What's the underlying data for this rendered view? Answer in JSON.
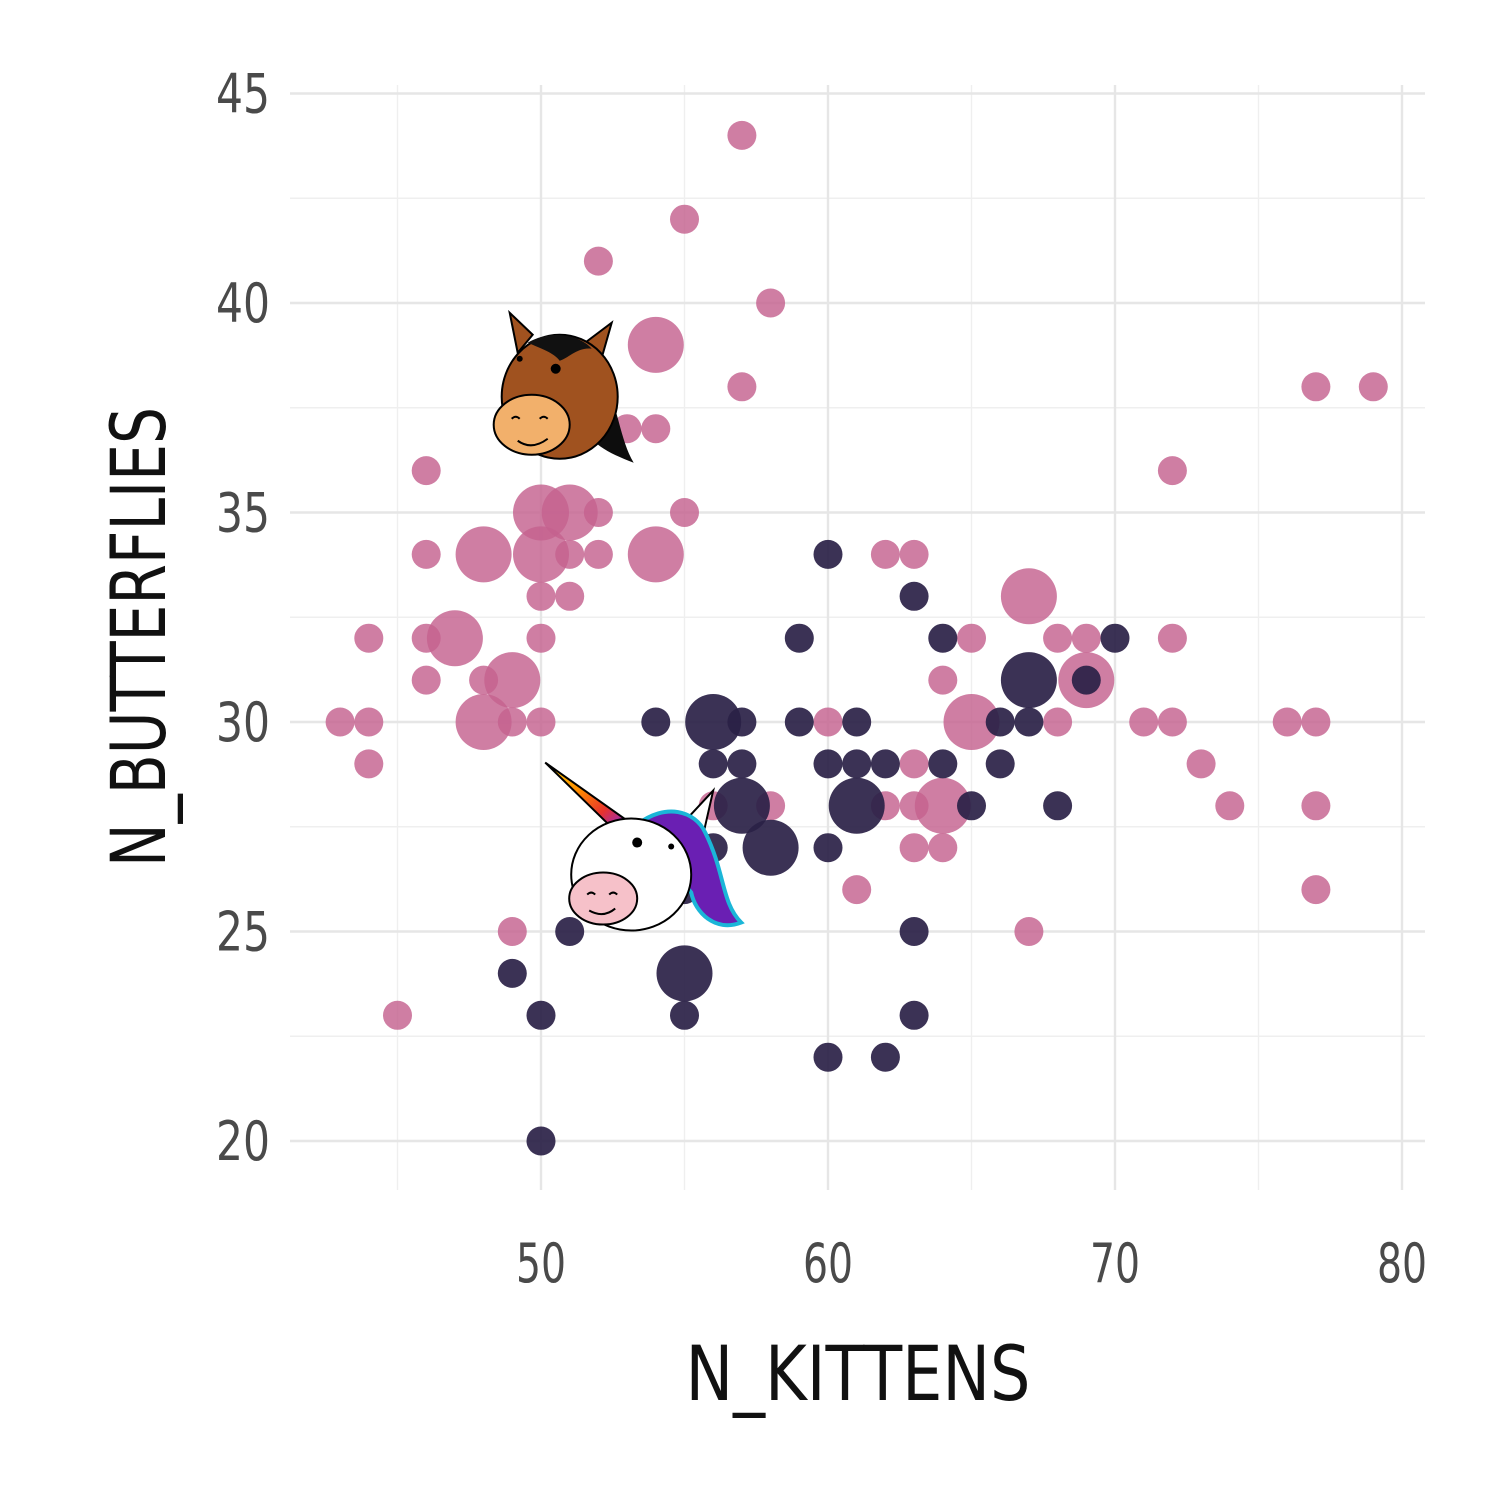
{
  "chart_data": {
    "type": "scatter",
    "xlabel": "N_KITTENS",
    "ylabel": "N_BUTTERFLIES",
    "xlim": [
      42.5,
      80.8
    ],
    "ylim": [
      19.2,
      45.3
    ],
    "x_ticks": [
      50,
      60,
      70,
      80
    ],
    "y_ticks": [
      20,
      25,
      30,
      35,
      40,
      45
    ],
    "grid": true,
    "legend": "none",
    "series": [
      {
        "color": "#c4628f",
        "icon": "horse-icon",
        "points": [
          {
            "x": 57,
            "y": 44,
            "size": 1
          },
          {
            "x": 55,
            "y": 42,
            "size": 1
          },
          {
            "x": 52,
            "y": 41,
            "size": 1
          },
          {
            "x": 58,
            "y": 40,
            "size": 1
          },
          {
            "x": 54,
            "y": 39,
            "size": 2
          },
          {
            "x": 51,
            "y": 38,
            "size": 2
          },
          {
            "x": 57,
            "y": 38,
            "size": 1
          },
          {
            "x": 51,
            "y": 37,
            "size": 1
          },
          {
            "x": 53,
            "y": 37,
            "size": 1
          },
          {
            "x": 54,
            "y": 37,
            "size": 1
          },
          {
            "x": 46,
            "y": 36,
            "size": 1
          },
          {
            "x": 50,
            "y": 35,
            "size": 2
          },
          {
            "x": 51,
            "y": 35,
            "size": 2
          },
          {
            "x": 52,
            "y": 35,
            "size": 1
          },
          {
            "x": 55,
            "y": 35,
            "size": 1
          },
          {
            "x": 46,
            "y": 34,
            "size": 1
          },
          {
            "x": 48,
            "y": 34,
            "size": 2
          },
          {
            "x": 50,
            "y": 34,
            "size": 2
          },
          {
            "x": 51,
            "y": 34,
            "size": 1
          },
          {
            "x": 52,
            "y": 34,
            "size": 1
          },
          {
            "x": 54,
            "y": 34,
            "size": 2
          },
          {
            "x": 50,
            "y": 33,
            "size": 1
          },
          {
            "x": 51,
            "y": 33,
            "size": 1
          },
          {
            "x": 44,
            "y": 32,
            "size": 1
          },
          {
            "x": 46,
            "y": 32,
            "size": 1
          },
          {
            "x": 47,
            "y": 32,
            "size": 2
          },
          {
            "x": 50,
            "y": 32,
            "size": 1
          },
          {
            "x": 46,
            "y": 31,
            "size": 1
          },
          {
            "x": 48,
            "y": 31,
            "size": 1
          },
          {
            "x": 49,
            "y": 31,
            "size": 2
          },
          {
            "x": 43,
            "y": 30,
            "size": 1
          },
          {
            "x": 44,
            "y": 30,
            "size": 1
          },
          {
            "x": 48,
            "y": 30,
            "size": 2
          },
          {
            "x": 49,
            "y": 30,
            "size": 1
          },
          {
            "x": 50,
            "y": 30,
            "size": 1
          },
          {
            "x": 44,
            "y": 29,
            "size": 1
          },
          {
            "x": 49,
            "y": 25,
            "size": 1
          },
          {
            "x": 45,
            "y": 23,
            "size": 1
          },
          {
            "x": 62,
            "y": 34,
            "size": 1
          },
          {
            "x": 63,
            "y": 34,
            "size": 1
          },
          {
            "x": 67,
            "y": 33,
            "size": 2
          },
          {
            "x": 65,
            "y": 32,
            "size": 1
          },
          {
            "x": 68,
            "y": 32,
            "size": 1
          },
          {
            "x": 69,
            "y": 32,
            "size": 1
          },
          {
            "x": 72,
            "y": 32,
            "size": 1
          },
          {
            "x": 64,
            "y": 31,
            "size": 1
          },
          {
            "x": 69,
            "y": 31,
            "size": 2
          },
          {
            "x": 60,
            "y": 30,
            "size": 1
          },
          {
            "x": 65,
            "y": 30,
            "size": 2
          },
          {
            "x": 68,
            "y": 30,
            "size": 1
          },
          {
            "x": 71,
            "y": 30,
            "size": 1
          },
          {
            "x": 72,
            "y": 30,
            "size": 1
          },
          {
            "x": 76,
            "y": 30,
            "size": 1
          },
          {
            "x": 77,
            "y": 30,
            "size": 1
          },
          {
            "x": 63,
            "y": 29,
            "size": 1
          },
          {
            "x": 73,
            "y": 29,
            "size": 1
          },
          {
            "x": 56,
            "y": 28,
            "size": 1
          },
          {
            "x": 58,
            "y": 28,
            "size": 1
          },
          {
            "x": 62,
            "y": 28,
            "size": 1
          },
          {
            "x": 63,
            "y": 28,
            "size": 1
          },
          {
            "x": 64,
            "y": 28,
            "size": 2
          },
          {
            "x": 74,
            "y": 28,
            "size": 1
          },
          {
            "x": 77,
            "y": 28,
            "size": 1
          },
          {
            "x": 63,
            "y": 27,
            "size": 1
          },
          {
            "x": 64,
            "y": 27,
            "size": 1
          },
          {
            "x": 61,
            "y": 26,
            "size": 1
          },
          {
            "x": 77,
            "y": 26,
            "size": 1
          },
          {
            "x": 67,
            "y": 25,
            "size": 1
          },
          {
            "x": 72,
            "y": 36,
            "size": 1
          },
          {
            "x": 77,
            "y": 38,
            "size": 1
          },
          {
            "x": 79,
            "y": 38,
            "size": 1
          }
        ]
      },
      {
        "color": "#2a2146",
        "icon": "unicorn-icon",
        "points": [
          {
            "x": 60,
            "y": 34,
            "size": 1
          },
          {
            "x": 63,
            "y": 33,
            "size": 1
          },
          {
            "x": 59,
            "y": 32,
            "size": 1
          },
          {
            "x": 64,
            "y": 32,
            "size": 1
          },
          {
            "x": 70,
            "y": 32,
            "size": 1
          },
          {
            "x": 67,
            "y": 31,
            "size": 2
          },
          {
            "x": 69,
            "y": 31,
            "size": 1
          },
          {
            "x": 54,
            "y": 30,
            "size": 1
          },
          {
            "x": 56,
            "y": 30,
            "size": 2
          },
          {
            "x": 57,
            "y": 30,
            "size": 1
          },
          {
            "x": 59,
            "y": 30,
            "size": 1
          },
          {
            "x": 61,
            "y": 30,
            "size": 1
          },
          {
            "x": 66,
            "y": 30,
            "size": 1
          },
          {
            "x": 67,
            "y": 30,
            "size": 1
          },
          {
            "x": 56,
            "y": 29,
            "size": 1
          },
          {
            "x": 57,
            "y": 29,
            "size": 1
          },
          {
            "x": 60,
            "y": 29,
            "size": 1
          },
          {
            "x": 61,
            "y": 29,
            "size": 1
          },
          {
            "x": 62,
            "y": 29,
            "size": 1
          },
          {
            "x": 64,
            "y": 29,
            "size": 1
          },
          {
            "x": 66,
            "y": 29,
            "size": 1
          },
          {
            "x": 57,
            "y": 28,
            "size": 2
          },
          {
            "x": 61,
            "y": 28,
            "size": 2
          },
          {
            "x": 65,
            "y": 28,
            "size": 1
          },
          {
            "x": 68,
            "y": 28,
            "size": 1
          },
          {
            "x": 52,
            "y": 27,
            "size": 1
          },
          {
            "x": 56,
            "y": 27,
            "size": 1
          },
          {
            "x": 58,
            "y": 27,
            "size": 2
          },
          {
            "x": 60,
            "y": 27,
            "size": 1
          },
          {
            "x": 55,
            "y": 26,
            "size": 1
          },
          {
            "x": 51,
            "y": 25,
            "size": 1
          },
          {
            "x": 63,
            "y": 25,
            "size": 1
          },
          {
            "x": 49,
            "y": 24,
            "size": 1
          },
          {
            "x": 55,
            "y": 24,
            "size": 2
          },
          {
            "x": 50,
            "y": 23,
            "size": 1
          },
          {
            "x": 55,
            "y": 23,
            "size": 1
          },
          {
            "x": 63,
            "y": 23,
            "size": 1
          },
          {
            "x": 60,
            "y": 22,
            "size": 1
          },
          {
            "x": 62,
            "y": 22,
            "size": 1
          },
          {
            "x": 50,
            "y": 20,
            "size": 1
          }
        ]
      }
    ],
    "annotations": [
      {
        "icon": "horse-icon",
        "x": 51,
        "y": 37.5
      },
      {
        "icon": "unicorn-icon",
        "x": 56,
        "y": 25.5
      }
    ]
  }
}
